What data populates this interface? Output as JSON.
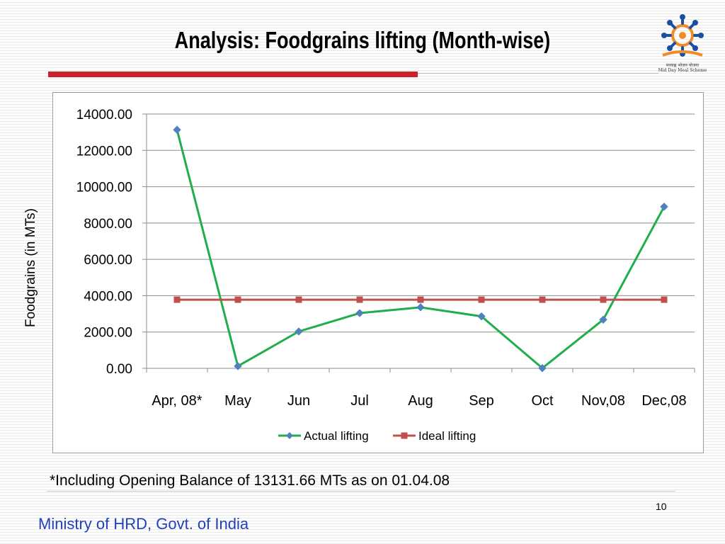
{
  "slide": {
    "title": "Analysis: Foodgrains lifting (Month-wise)",
    "footnote": "*Including Opening Balance of 13131.66 MTs as on 01.04.08",
    "page_number": "10",
    "footer": "Ministry of HRD, Govt. of India",
    "logo_text_hindi": "मध्याह्न भोजन योजना",
    "logo_text_english": "Mid Day Meal Scheme",
    "accent_color": "#cc1f27",
    "footer_color": "#1f3fbf"
  },
  "chart_data": {
    "type": "line",
    "title": "",
    "xlabel": "",
    "ylabel": "Foodgrains (in MTs)",
    "categories": [
      "Apr, 08*",
      "May",
      "Jun",
      "Jul",
      "Aug",
      "Sep",
      "Oct",
      "Nov,08",
      "Dec,08"
    ],
    "ylim": [
      0,
      14000
    ],
    "yticks": [
      "0.00",
      "2000.00",
      "4000.00",
      "6000.00",
      "8000.00",
      "10000.00",
      "12000.00",
      "14000.00"
    ],
    "grid": true,
    "legend_position": "bottom",
    "series": [
      {
        "name": "Actual lifting",
        "color": "#1fae4a",
        "marker": "diamond",
        "marker_color": "#4f81bd",
        "values": [
          13131.66,
          120,
          2030,
          3040,
          3360,
          2860,
          10,
          2680,
          8900
        ]
      },
      {
        "name": "Ideal lifting",
        "color": "#c0504d",
        "marker": "square",
        "marker_color": "#c0504d",
        "values": [
          3780,
          3780,
          3780,
          3780,
          3780,
          3780,
          3780,
          3780,
          3780
        ]
      }
    ]
  }
}
